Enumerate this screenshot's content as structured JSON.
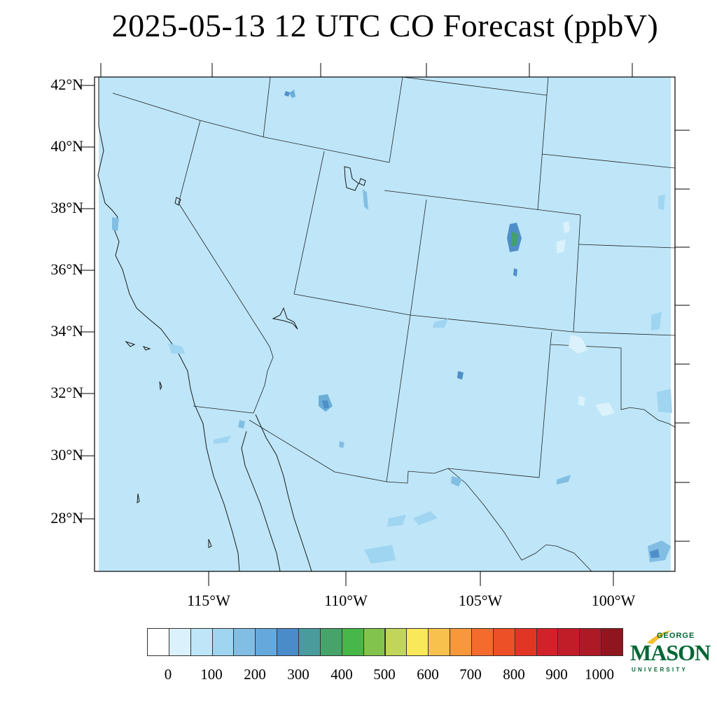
{
  "title": "2025-05-13 12 UTC CO Forecast (ppbV)",
  "map": {
    "lat_labels": [
      "42°N",
      "40°N",
      "38°N",
      "36°N",
      "34°N",
      "32°N",
      "30°N",
      "28°N"
    ],
    "lon_labels": [
      "115°W",
      "110°W",
      "105°W",
      "100°W"
    ],
    "background_color": "#bee6f8",
    "feature_colors": {
      "light": "#dbf1fb",
      "medium": "#a0d5f1",
      "dark": "#6aaed8",
      "very_dark": "#4f8fc9",
      "green": "#44a06d"
    }
  },
  "colorbar": {
    "colors": [
      "#ffffff",
      "#dbf1fb",
      "#bee6f8",
      "#a0d5f1",
      "#82bee3",
      "#65a9dc",
      "#4a8cca",
      "#4a9b9c",
      "#46a46a",
      "#46b748",
      "#82c34e",
      "#c0d55a",
      "#f9e85a",
      "#f8c04c",
      "#f7983d",
      "#f46b2e",
      "#ed4f26",
      "#e23625",
      "#d22129",
      "#c11d29",
      "#ad1a26",
      "#8f161f"
    ],
    "labels": [
      "0",
      "100",
      "200",
      "300",
      "400",
      "500",
      "600",
      "700",
      "800",
      "900",
      "1000"
    ]
  },
  "logo": {
    "line1": "GEORGE",
    "line2": "MASON",
    "line3": "UNIVERSITY"
  }
}
